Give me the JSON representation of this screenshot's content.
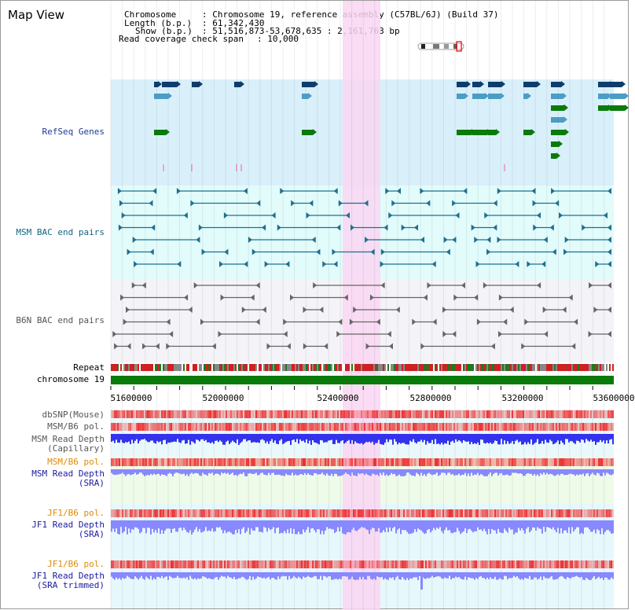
{
  "page": {
    "title": "Map View"
  },
  "header": {
    "chromosome_key": "Chromosome",
    "chromosome_value": ": Chromosome 19, reference assembly (C57BL/6J) (Build 37)",
    "length_key": "Length (b.p.)",
    "length_value": ": 61,342,430",
    "show_key": "Show (b.p.)",
    "show_value": ": 51,516,873-53,678,635 : 2,161,763 bp",
    "coverage_key": "Read coverage check span",
    "coverage_value": ": 10,000"
  },
  "tracks": {
    "refseq": {
      "label": "RefSeq Genes",
      "color": "#1a3a9a"
    },
    "msm_bac": {
      "label": "MSM BAC end pairs",
      "color": "#11667f"
    },
    "b6n_bac": {
      "label": "B6N BAC end pairs",
      "color": "#555555"
    },
    "repeat": {
      "label": "Repeat",
      "color": "#000000"
    },
    "chromosome": {
      "label": "chromosome 19",
      "color": "#000000"
    },
    "dbsnp": {
      "label": "dbSNP(Mouse)",
      "color": "#555555"
    },
    "msm_b6_pol_1": {
      "label": "MSM/B6 pol.",
      "color": "#555555"
    },
    "msm_depth_cap": {
      "label_1": "MSM Read Depth",
      "label_2": "(Capillary)",
      "color": "#555555"
    },
    "msm_b6_pol_2": {
      "label": "MSM/B6 pol.",
      "color": "#e08a00"
    },
    "msm_depth_sra": {
      "label_1": "MSM Read Depth",
      "label_2": "(SRA)",
      "color": "#1a1aa0"
    },
    "jf1_b6_pol_1": {
      "label": "JF1/B6 pol.",
      "color": "#e08a00"
    },
    "jf1_depth_sra": {
      "label_1": "JF1 Read Depth",
      "label_2": "(SRA)",
      "color": "#1a1aa0"
    },
    "jf1_b6_pol_2": {
      "label": "JF1/B6 pol.",
      "color": "#e08a00"
    },
    "jf1_depth_trim": {
      "label_1": "JF1 Read Depth",
      "label_2": "(SRA trimmed)",
      "color": "#1a1aa0"
    }
  },
  "axis": {
    "ticks": [
      "51600000",
      "52000000",
      "52400000",
      "52800000",
      "53200000",
      "53600000"
    ]
  },
  "colors": {
    "highlight": "#f9d6f2",
    "refseq_bg": "#d9f0fb",
    "msm_bg": "#e2fbfb",
    "b6n_bg": "#f3f3f8",
    "chromosome_bar": "#0a7a0a",
    "gene_dark": "#0f3d6b",
    "gene_light": "#4c9dc4",
    "gene_green": "#0a7a0a",
    "snp_red": "#ee3030",
    "depth_blue": "#3333ee",
    "depth_light": "#8888ff"
  }
}
